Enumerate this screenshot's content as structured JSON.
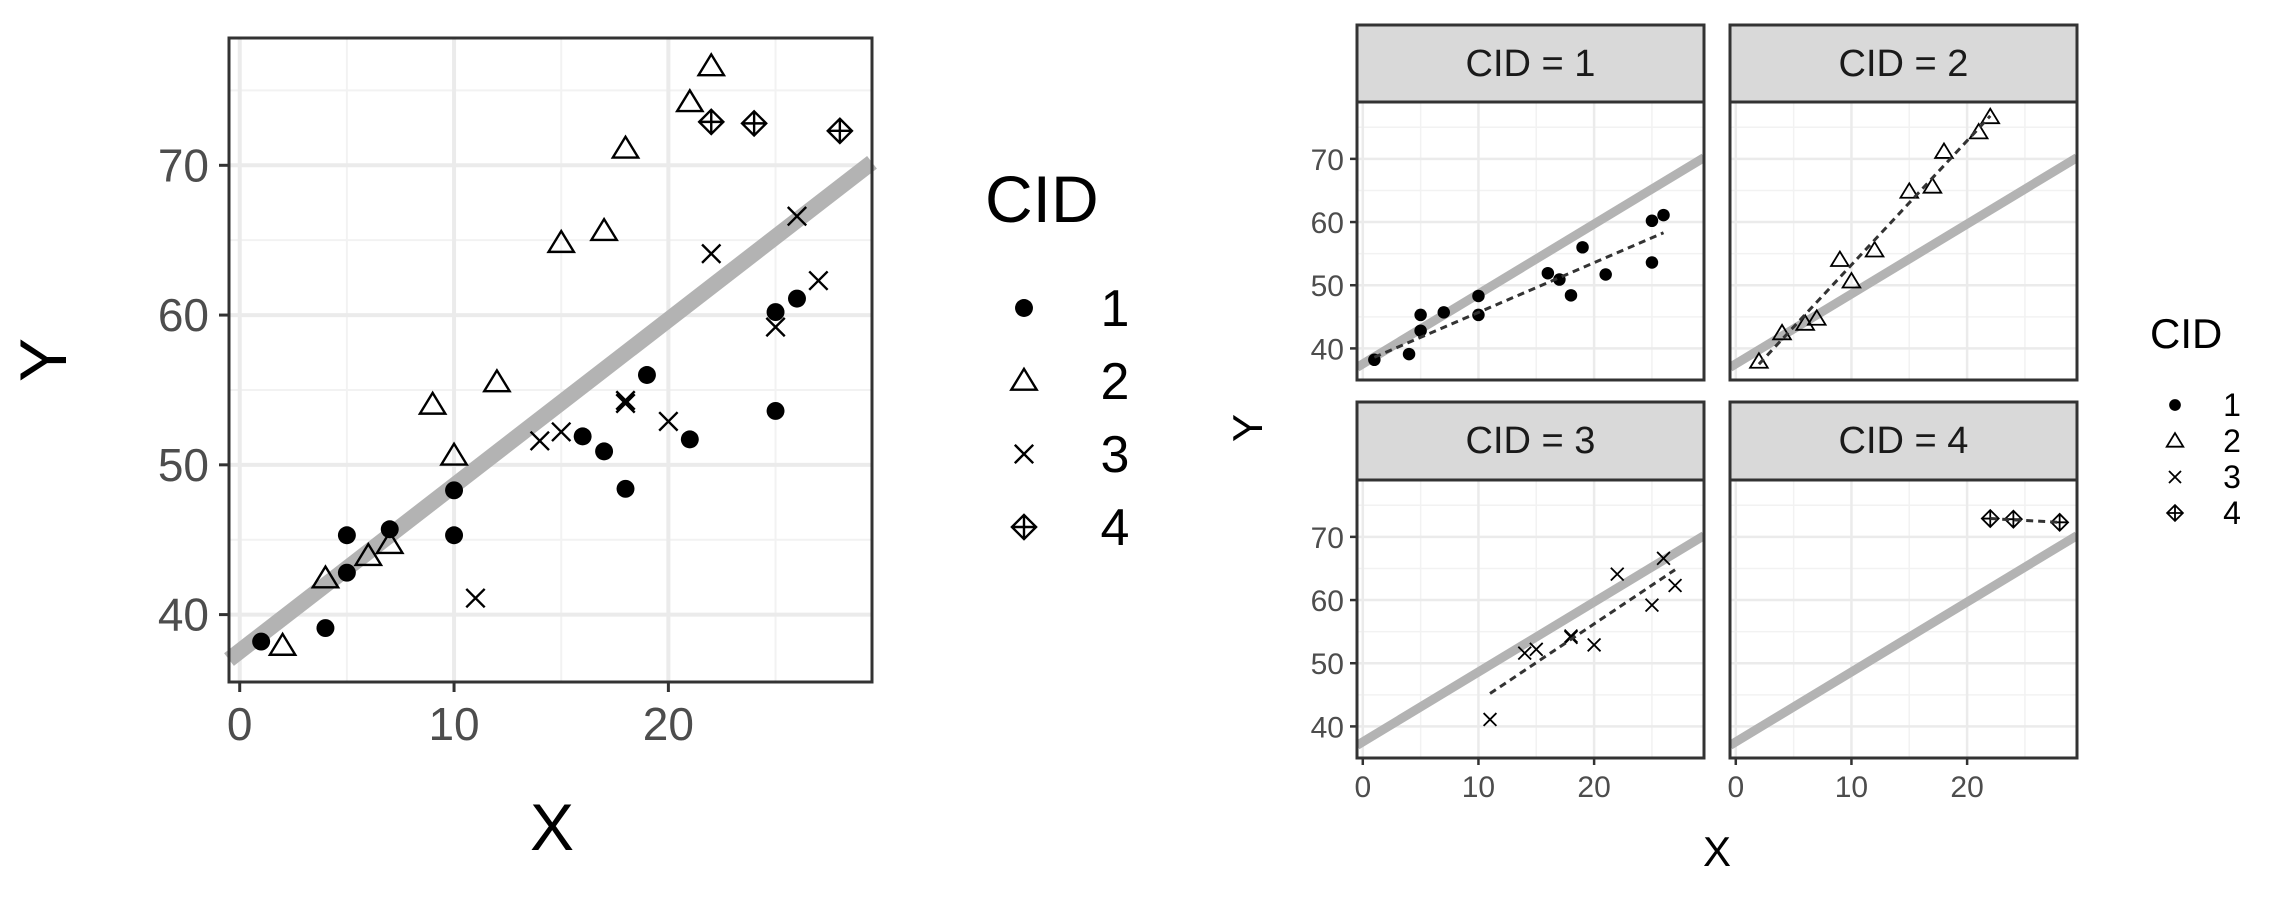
{
  "left_chart": {
    "xlabel": "X",
    "ylabel": "Y",
    "legend_title": "CID"
  },
  "right_chart": {
    "xlabel": "X",
    "ylabel": "Y",
    "legend_title": "CID"
  },
  "chart_data": [
    {
      "type": "scatter",
      "panel": "pooled",
      "xlabel": "X",
      "ylabel": "Y",
      "xlim": [
        -0.5,
        29.5
      ],
      "ylim": [
        35.5,
        78.5
      ],
      "xticks": [
        0,
        10,
        20
      ],
      "yticks": [
        40,
        50,
        60,
        70
      ],
      "grid": true,
      "legend_title": "CID",
      "legend_position": "right",
      "series": [
        {
          "name": "1",
          "points": [
            [
              1,
              38.2
            ],
            [
              4,
              39.1
            ],
            [
              5,
              45.3
            ],
            [
              5,
              42.8
            ],
            [
              7,
              45.7
            ],
            [
              10,
              48.3
            ],
            [
              10,
              45.3
            ],
            [
              16,
              51.9
            ],
            [
              17,
              50.9
            ],
            [
              18,
              48.4
            ],
            [
              19,
              56.0
            ],
            [
              21,
              51.7
            ],
            [
              25,
              60.2
            ],
            [
              25,
              53.6
            ],
            [
              26,
              61.1
            ]
          ]
        },
        {
          "name": "2",
          "points": [
            [
              2,
              37.9
            ],
            [
              4,
              42.4
            ],
            [
              6,
              43.9
            ],
            [
              7,
              44.7
            ],
            [
              9,
              54.0
            ],
            [
              10,
              50.6
            ],
            [
              12,
              55.5
            ],
            [
              15,
              64.8
            ],
            [
              17,
              65.6
            ],
            [
              18,
              71.1
            ],
            [
              21,
              74.2
            ],
            [
              22,
              76.6
            ]
          ]
        },
        {
          "name": "3",
          "points": [
            [
              11,
              41.1
            ],
            [
              14,
              51.6
            ],
            [
              15,
              52.2
            ],
            [
              18,
              54.1
            ],
            [
              18,
              54.3
            ],
            [
              20,
              52.9
            ],
            [
              22,
              64.1
            ],
            [
              25,
              59.2
            ],
            [
              26,
              66.6
            ],
            [
              27,
              62.3
            ]
          ]
        },
        {
          "name": "4",
          "points": [
            [
              22,
              72.9
            ],
            [
              24,
              72.8
            ],
            [
              28,
              72.3
            ]
          ]
        }
      ],
      "overall_fit": {
        "x": [
          -0.5,
          29.5
        ],
        "y": [
          37.0,
          70.2
        ]
      }
    },
    {
      "type": "scatter",
      "panel": "facets",
      "xlabel": "X",
      "ylabel": "Y",
      "xlim": [
        -0.5,
        29.5
      ],
      "ylim": [
        35,
        79
      ],
      "xticks": [
        0,
        10,
        20
      ],
      "yticks": [
        40,
        50,
        60,
        70
      ],
      "grid": true,
      "legend_title": "CID",
      "legend_position": "right",
      "facets": [
        {
          "strip": "CID = 1",
          "series": "1",
          "fit": {
            "x": [
              1,
              26
            ],
            "y": [
              38.6,
              58.3
            ]
          }
        },
        {
          "strip": "CID = 2",
          "series": "2",
          "fit": {
            "x": [
              2,
              22
            ],
            "y": [
              37.5,
              76.8
            ]
          }
        },
        {
          "strip": "CID = 3",
          "series": "3",
          "fit": {
            "x": [
              11,
              27
            ],
            "y": [
              45.2,
              64.8
            ]
          }
        },
        {
          "strip": "CID = 4",
          "series": "4",
          "fit": {
            "x": [
              22,
              28
            ],
            "y": [
              72.9,
              72.3
            ]
          }
        }
      ],
      "overall_fit": {
        "x": [
          -0.5,
          29.5
        ],
        "y": [
          37.0,
          70.2
        ]
      }
    }
  ]
}
